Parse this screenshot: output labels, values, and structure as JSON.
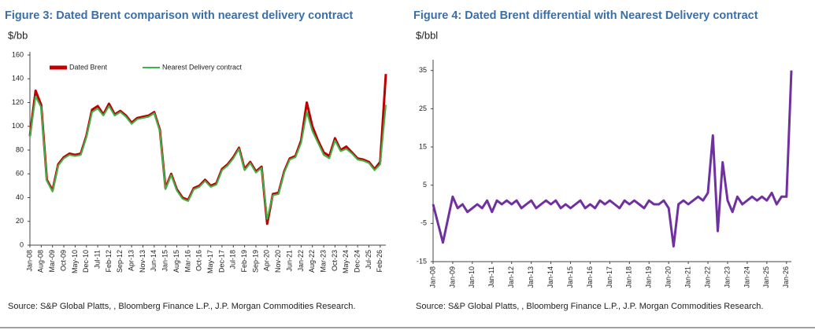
{
  "chart_data": [
    {
      "type": "line",
      "title": "Figure 3: Dated Brent comparison with nearest delivery contract",
      "y_label": "$/bb",
      "categories": [
        "Jan-08",
        null,
        "Aug-08",
        null,
        "Mar-09",
        null,
        "Oct-09",
        null,
        "May-10",
        null,
        "Dec-10",
        null,
        "Jul-11",
        null,
        "Feb-12",
        null,
        "Sep-12",
        null,
        "Apr-13",
        null,
        "Nov-13",
        null,
        "Jun-14",
        null,
        "Jan-15",
        null,
        "Aug-15",
        null,
        "Mar-16",
        null,
        "Oct-16",
        null,
        "May-17",
        null,
        "Dec-17",
        null,
        "Jul-18",
        null,
        "Feb-19",
        null,
        "Sep-19",
        null,
        "Apr-20",
        null,
        "Nov-20",
        null,
        "Jun-21",
        null,
        "Jan-22",
        null,
        "Aug-22",
        null,
        "Mar-23",
        null,
        "Oct-23",
        null,
        "May-24",
        null,
        "Dec-24",
        null,
        "Jul-25",
        null,
        "Feb-26",
        null
      ],
      "series": [
        {
          "name": "Dated Brent",
          "color": "#c00000",
          "values": [
            92,
            130,
            118,
            55,
            46,
            68,
            74,
            77,
            76,
            77,
            92,
            114,
            117,
            110,
            119,
            110,
            113,
            109,
            103,
            107,
            108,
            109,
            112,
            97,
            48,
            60,
            47,
            40,
            38,
            48,
            50,
            55,
            50,
            52,
            64,
            68,
            74,
            82,
            64,
            70,
            62,
            66,
            18,
            43,
            44,
            62,
            73,
            75,
            88,
            120,
            100,
            88,
            78,
            75,
            90,
            80,
            83,
            78,
            73,
            72,
            70,
            64,
            70,
            144
          ]
        },
        {
          "name": "Nearest Delivery contract",
          "color": "#3cb44b",
          "values": [
            91,
            125,
            116,
            54,
            45,
            67,
            73,
            76,
            75,
            76,
            91,
            112,
            115,
            109,
            117,
            109,
            112,
            108,
            102,
            106,
            107,
            108,
            111,
            96,
            47,
            59,
            46,
            39,
            37,
            47,
            49,
            54,
            49,
            51,
            63,
            67,
            73,
            81,
            63,
            69,
            61,
            65,
            22,
            42,
            43,
            61,
            72,
            74,
            86,
            112,
            96,
            86,
            76,
            73,
            88,
            79,
            81,
            77,
            72,
            71,
            69,
            63,
            68,
            118
          ]
        }
      ],
      "ylim": [
        0,
        160
      ],
      "yticks": [
        0,
        20,
        40,
        60,
        80,
        100,
        120,
        140,
        160
      ],
      "legend": "top",
      "source": "Source: S&P Global Platts, , Bloomberg Finance L.P., J.P. Morgan Commodities Research."
    },
    {
      "type": "line",
      "title": "Figure 4: Dated Brent differential with Nearest Delivery contract",
      "y_label": "$/bbl",
      "categories": [
        "Jan-08",
        null,
        null,
        null,
        "Jan-09",
        null,
        null,
        null,
        "Jan-10",
        null,
        null,
        null,
        "Jan-11",
        null,
        null,
        null,
        "Jan-12",
        null,
        null,
        null,
        "Jan-13",
        null,
        null,
        null,
        "Jan-14",
        null,
        null,
        null,
        "Jan-15",
        null,
        null,
        null,
        "Jan-16",
        null,
        null,
        null,
        "Jan-17",
        null,
        null,
        null,
        "Jan-18",
        null,
        null,
        null,
        "Jan-19",
        null,
        null,
        null,
        "Jan-20",
        null,
        null,
        null,
        "Jan-21",
        null,
        null,
        null,
        "Jan-22",
        null,
        null,
        null,
        "Jan-23",
        null,
        null,
        null,
        "Jan-24",
        null,
        null,
        null,
        "Jan-25",
        null,
        null,
        null,
        "Jan-26",
        null
      ],
      "series": [
        {
          "name": "Differential",
          "color": "#7030a0",
          "values": [
            0,
            -5,
            -10,
            -4,
            2,
            -1,
            0,
            -2,
            -1,
            0,
            -1,
            1,
            -2,
            1,
            0,
            1,
            0,
            1,
            -1,
            0,
            1,
            -1,
            0,
            1,
            0,
            1,
            -1,
            0,
            -1,
            0,
            1,
            -1,
            0,
            -1,
            1,
            0,
            1,
            0,
            -1,
            1,
            0,
            1,
            0,
            -1,
            1,
            0,
            0,
            1,
            -1,
            -11,
            0,
            1,
            0,
            1,
            2,
            1,
            3,
            18,
            -7,
            11,
            1,
            -2,
            2,
            0,
            1,
            2,
            1,
            2,
            1,
            3,
            0,
            2,
            2,
            35
          ]
        }
      ],
      "ylim": [
        -15,
        37
      ],
      "yticks": [
        35,
        25,
        15,
        5,
        -5,
        -15
      ],
      "source": "Source: S&P Global Platts, , Bloomberg Finance L.P., J.P. Morgan Commodities Research."
    }
  ]
}
